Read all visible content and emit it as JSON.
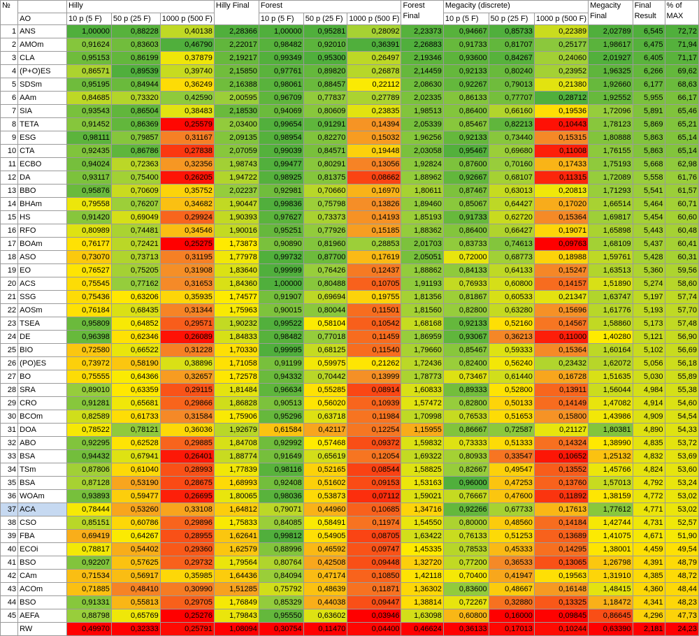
{
  "header": {
    "no": "№",
    "ao": "AO",
    "groups": [
      "Hilly",
      "Forest",
      "Megacity (discrete)"
    ],
    "sub": [
      "10 p (5 F)",
      "50 p (25 F)",
      "1000 p (500 F)"
    ],
    "final_labels": [
      "Hilly Final",
      "Forest Final",
      "Megacity Final"
    ],
    "final_result": "Final Result",
    "pct_max": "% of MAX"
  },
  "rows": [
    {
      "n": "1",
      "name": "ANS",
      "v": [
        "1,00000",
        "0,88228",
        "0,40138",
        "2,28366",
        "1,00000",
        "0,95281",
        "0,28092",
        "2,23373",
        "0,94667",
        "0,85733",
        "0,22389",
        "2,02789",
        "6,545",
        "72,72"
      ]
    },
    {
      "n": "2",
      "name": "AMOm",
      "v": [
        "0,91624",
        "0,83603",
        "0,46790",
        "2,22017",
        "0,98482",
        "0,92010",
        "0,36391",
        "2,26883",
        "0,91733",
        "0,81707",
        "0,25177",
        "1,98617",
        "6,475",
        "71,94"
      ]
    },
    {
      "n": "3",
      "name": "CLA",
      "v": [
        "0,95153",
        "0,86199",
        "0,37879",
        "2,19217",
        "0,99349",
        "0,95300",
        "0,26497",
        "2,19346",
        "0,93600",
        "0,84267",
        "0,24060",
        "2,01927",
        "6,405",
        "71,17"
      ]
    },
    {
      "n": "4",
      "name": "(P+O)ES",
      "v": [
        "0,86571",
        "0,89539",
        "0,39740",
        "2,15850",
        "0,97761",
        "0,89820",
        "0,26878",
        "2,14459",
        "0,92133",
        "0,80240",
        "0,23952",
        "1,96325",
        "6,266",
        "69,62"
      ]
    },
    {
      "n": "5",
      "name": "SDSm",
      "v": [
        "0,95195",
        "0,84944",
        "0,36249",
        "2,16388",
        "0,98061",
        "0,88457",
        "0,22112",
        "2,08630",
        "0,92267",
        "0,79013",
        "0,21380",
        "1,92660",
        "6,177",
        "68,63"
      ]
    },
    {
      "n": "6",
      "name": "AAm",
      "v": [
        "0,84685",
        "0,73320",
        "0,42590",
        "2,00595",
        "0,96709",
        "0,77837",
        "0,27789",
        "2,02335",
        "0,86133",
        "0,77707",
        "0,28712",
        "1,92552",
        "5,955",
        "66,17"
      ]
    },
    {
      "n": "7",
      "name": "SIA",
      "v": [
        "0,93543",
        "0,86504",
        "0,38483",
        "2,18530",
        "0,94069",
        "0,80609",
        "0,23835",
        "1,98513",
        "0,86400",
        "0,66160",
        "0,19536",
        "1,72096",
        "5,891",
        "65,46"
      ]
    },
    {
      "n": "8",
      "name": "TETA",
      "v": [
        "0,91452",
        "0,86369",
        "0,25579",
        "2,03400",
        "0,99654",
        "0,91291",
        "0,14394",
        "2,05339",
        "0,85467",
        "0,82213",
        "0,10443",
        "1,78123",
        "5,869",
        "65,21"
      ]
    },
    {
      "n": "9",
      "name": "ESG",
      "v": [
        "0,98111",
        "0,79857",
        "0,31167",
        "2,09135",
        "0,98954",
        "0,82270",
        "0,15032",
        "1,96256",
        "0,92133",
        "0,73440",
        "0,15315",
        "1,80888",
        "5,863",
        "65,14"
      ]
    },
    {
      "n": "10",
      "name": "CTA",
      "v": [
        "0,92435",
        "0,86786",
        "0,27838",
        "2,07059",
        "0,99039",
        "0,84571",
        "0,19448",
        "2,03058",
        "0,95467",
        "0,69680",
        "0,11008",
        "1,76155",
        "5,863",
        "65,14"
      ]
    },
    {
      "n": "11",
      "name": "ECBO",
      "v": [
        "0,94024",
        "0,72363",
        "0,32356",
        "1,98743",
        "0,99477",
        "0,80291",
        "0,13056",
        "1,92824",
        "0,87600",
        "0,70160",
        "0,17433",
        "1,75193",
        "5,668",
        "62,98"
      ]
    },
    {
      "n": "12",
      "name": "DA",
      "v": [
        "0,93117",
        "0,75400",
        "0,26205",
        "1,94722",
        "0,98925",
        "0,81375",
        "0,08662",
        "1,88962",
        "0,92667",
        "0,68107",
        "0,11315",
        "1,72089",
        "5,558",
        "61,76"
      ]
    },
    {
      "n": "13",
      "name": "BBO",
      "v": [
        "0,95876",
        "0,70609",
        "0,35752",
        "2,02237",
        "0,92981",
        "0,70660",
        "0,16970",
        "1,80611",
        "0,87467",
        "0,63013",
        "0,20813",
        "1,71293",
        "5,541",
        "61,57"
      ]
    },
    {
      "n": "14",
      "name": "BHAm",
      "v": [
        "0,79558",
        "0,76207",
        "0,34682",
        "1,90447",
        "0,99836",
        "0,75798",
        "0,13826",
        "1,89460",
        "0,85067",
        "0,64427",
        "0,17020",
        "1,66514",
        "5,464",
        "60,71"
      ]
    },
    {
      "n": "15",
      "name": "HS",
      "v": [
        "0,91420",
        "0,69049",
        "0,29924",
        "1,90393",
        "0,97627",
        "0,73373",
        "0,14193",
        "1,85193",
        "0,91733",
        "0,62720",
        "0,15364",
        "1,69817",
        "5,454",
        "60,60"
      ]
    },
    {
      "n": "16",
      "name": "RFO",
      "v": [
        "0,80989",
        "0,74481",
        "0,34546",
        "1,90016",
        "0,95251",
        "0,77926",
        "0,15185",
        "1,88362",
        "0,86400",
        "0,66427",
        "0,19071",
        "1,65898",
        "5,443",
        "60,48"
      ]
    },
    {
      "n": "17",
      "name": "BOAm",
      "v": [
        "0,76177",
        "0,72421",
        "0,25275",
        "1,73873",
        "0,90890",
        "0,81960",
        "0,28853",
        "2,01703",
        "0,83733",
        "0,74613",
        "0,09763",
        "1,68109",
        "5,437",
        "60,41"
      ]
    },
    {
      "n": "18",
      "name": "ASO",
      "v": [
        "0,73070",
        "0,73713",
        "0,31195",
        "1,77978",
        "0,99732",
        "0,87700",
        "0,17619",
        "2,05051",
        "0,72000",
        "0,68773",
        "0,18988",
        "1,59761",
        "5,428",
        "60,31"
      ]
    },
    {
      "n": "19",
      "name": "EO",
      "v": [
        "0,76527",
        "0,75205",
        "0,31908",
        "1,83640",
        "0,99999",
        "0,76426",
        "0,12437",
        "1,88862",
        "0,84133",
        "0,64133",
        "0,15247",
        "1,63513",
        "5,360",
        "59,56"
      ]
    },
    {
      "n": "20",
      "name": "ACS",
      "v": [
        "0,75545",
        "0,77162",
        "0,31653",
        "1,84360",
        "1,00000",
        "0,80488",
        "0,10705",
        "1,91193",
        "0,76933",
        "0,60800",
        "0,14157",
        "1,51890",
        "5,274",
        "58,60"
      ]
    },
    {
      "n": "21",
      "name": "SSG",
      "v": [
        "0,75436",
        "0,63206",
        "0,35935",
        "1,74577",
        "0,91907",
        "0,69694",
        "0,19755",
        "1,81356",
        "0,81867",
        "0,60533",
        "0,21347",
        "1,63747",
        "5,197",
        "57,74"
      ]
    },
    {
      "n": "22",
      "name": "AOSm",
      "v": [
        "0,76184",
        "0,68435",
        "0,31344",
        "1,75963",
        "0,90015",
        "0,80044",
        "0,11501",
        "1,81560",
        "0,82800",
        "0,63280",
        "0,15696",
        "1,61776",
        "5,193",
        "57,70"
      ]
    },
    {
      "n": "23",
      "name": "TSEA",
      "v": [
        "0,95809",
        "0,64852",
        "0,29571",
        "1,90232",
        "0,99522",
        "0,58104",
        "0,10542",
        "1,68168",
        "0,92133",
        "0,52160",
        "0,14567",
        "1,58860",
        "5,173",
        "57,48"
      ]
    },
    {
      "n": "24",
      "name": "DE",
      "v": [
        "0,96398",
        "0,62346",
        "0,26089",
        "1,84833",
        "0,98482",
        "0,77018",
        "0,11459",
        "1,86959",
        "0,93067",
        "0,36213",
        "0,11000",
        "1,40280",
        "5,121",
        "56,90"
      ]
    },
    {
      "n": "25",
      "name": "BIO",
      "v": [
        "0,72580",
        "0,66522",
        "0,31228",
        "1,70330",
        "0,99995",
        "0,68125",
        "0,11540",
        "1,79660",
        "0,85467",
        "0,59333",
        "0,15364",
        "1,60164",
        "5,102",
        "56,69"
      ]
    },
    {
      "n": "26",
      "name": "(PO)ES",
      "v": [
        "0,73972",
        "0,58190",
        "0,38896",
        "1,71058",
        "0,91199",
        "0,59975",
        "0,21262",
        "1,72436",
        "0,82400",
        "0,56240",
        "0,23432",
        "1,62072",
        "5,056",
        "56,18"
      ]
    },
    {
      "n": "27",
      "name": "BO",
      "v": [
        "0,75555",
        "0,64366",
        "0,32657",
        "1,72578",
        "0,94332",
        "0,70442",
        "0,13999",
        "1,78773",
        "0,73467",
        "0,61440",
        "0,16728",
        "1,51635",
        "5,030",
        "55,89"
      ]
    },
    {
      "n": "28",
      "name": "SRA",
      "v": [
        "0,89010",
        "0,63359",
        "0,29115",
        "1,81484",
        "0,96634",
        "0,55285",
        "0,08914",
        "1,60833",
        "0,89333",
        "0,52800",
        "0,13911",
        "1,56044",
        "4,984",
        "55,38"
      ]
    },
    {
      "n": "29",
      "name": "CRO",
      "v": [
        "0,91281",
        "0,65681",
        "0,29866",
        "1,86828",
        "0,90513",
        "0,56020",
        "0,10939",
        "1,57472",
        "0,82800",
        "0,50133",
        "0,14149",
        "1,47082",
        "4,914",
        "54,60"
      ]
    },
    {
      "n": "30",
      "name": "BCOm",
      "v": [
        "0,82589",
        "0,61733",
        "0,31584",
        "1,75906",
        "0,95296",
        "0,63718",
        "0,11984",
        "1,70998",
        "0,76533",
        "0,51653",
        "0,15800",
        "1,43986",
        "4,909",
        "54,54"
      ]
    },
    {
      "n": "31",
      "name": "DOA",
      "v": [
        "0,78522",
        "0,78121",
        "0,36036",
        "1,92679",
        "0,61584",
        "0,42117",
        "0,12254",
        "1,15955",
        "0,86667",
        "0,72587",
        "0,21127",
        "1,80381",
        "4,890",
        "54,33"
      ]
    },
    {
      "n": "32",
      "name": "ABO",
      "v": [
        "0,92295",
        "0,62528",
        "0,29885",
        "1,84708",
        "0,92992",
        "0,57468",
        "0,09372",
        "1,59832",
        "0,73333",
        "0,51333",
        "0,14324",
        "1,38990",
        "4,835",
        "53,72"
      ]
    },
    {
      "n": "33",
      "name": "BSA",
      "v": [
        "0,94432",
        "0,67941",
        "0,26401",
        "1,88774",
        "0,91649",
        "0,65619",
        "0,12054",
        "1,69322",
        "0,80933",
        "0,33547",
        "0,10652",
        "1,25132",
        "4,832",
        "53,69"
      ]
    },
    {
      "n": "34",
      "name": "TSm",
      "v": [
        "0,87806",
        "0,61040",
        "0,28993",
        "1,77839",
        "0,98116",
        "0,52165",
        "0,08544",
        "1,58825",
        "0,82667",
        "0,49547",
        "0,13552",
        "1,45766",
        "4,824",
        "53,60"
      ]
    },
    {
      "n": "35",
      "name": "BSA",
      "v": [
        "0,87128",
        "0,53190",
        "0,28675",
        "1,68993",
        "0,92408",
        "0,51602",
        "0,09153",
        "1,53163",
        "0,96000",
        "0,47253",
        "0,13760",
        "1,57013",
        "4,792",
        "53,24"
      ]
    },
    {
      "n": "36",
      "name": "WOAm",
      "v": [
        "0,93893",
        "0,59477",
        "0,26695",
        "1,80065",
        "0,98036",
        "0,53873",
        "0,07112",
        "1,59021",
        "0,76667",
        "0,47600",
        "0,11892",
        "1,38159",
        "4,772",
        "53,02"
      ]
    },
    {
      "n": "37",
      "name": "ACA",
      "v": [
        "0,78444",
        "0,53260",
        "0,33108",
        "1,64812",
        "0,79071",
        "0,44960",
        "0,10685",
        "1,34716",
        "0,92266",
        "0,67733",
        "0,17613",
        "1,77612",
        "4,771",
        "53,02"
      ]
    },
    {
      "n": "38",
      "name": "CSO",
      "v": [
        "0,85151",
        "0,60786",
        "0,29896",
        "1,75833",
        "0,84085",
        "0,58491",
        "0,11974",
        "1,54550",
        "0,80000",
        "0,48560",
        "0,14184",
        "1,42744",
        "4,731",
        "52,57"
      ]
    },
    {
      "n": "39",
      "name": "FBA",
      "v": [
        "0,69419",
        "0,64267",
        "0,28955",
        "1,62641",
        "0,99812",
        "0,54905",
        "0,08705",
        "1,63422",
        "0,76133",
        "0,51253",
        "0,13689",
        "1,41075",
        "4,671",
        "51,90"
      ]
    },
    {
      "n": "40",
      "name": "ECOi",
      "v": [
        "0,78817",
        "0,54402",
        "0,29360",
        "1,62579",
        "0,88996",
        "0,46592",
        "0,09747",
        "1,45335",
        "0,78533",
        "0,45333",
        "0,14295",
        "1,38001",
        "4,459",
        "49,54"
      ]
    },
    {
      "n": "41",
      "name": "BSO",
      "v": [
        "0,92207",
        "0,57625",
        "0,29732",
        "1,79564",
        "0,80764",
        "0,42508",
        "0,09448",
        "1,32720",
        "0,77200",
        "0,36533",
        "0,13065",
        "1,26798",
        "4,391",
        "48,79"
      ]
    },
    {
      "n": "42",
      "name": "CAm",
      "v": [
        "0,71534",
        "0,56917",
        "0,35985",
        "1,64436",
        "0,84094",
        "0,47174",
        "0,10850",
        "1,42118",
        "0,70400",
        "0,41947",
        "0,19563",
        "1,31910",
        "4,385",
        "48,72"
      ]
    },
    {
      "n": "43",
      "name": "ACOm",
      "v": [
        "0,71885",
        "0,48410",
        "0,30990",
        "1,51285",
        "0,75792",
        "0,48639",
        "0,11871",
        "1,36302",
        "0,83600",
        "0,48667",
        "0,16148",
        "1,48415",
        "4,360",
        "48,44"
      ]
    },
    {
      "n": "44",
      "name": "BSO",
      "v": [
        "0,91331",
        "0,55813",
        "0,29705",
        "1,76849",
        "0,85329",
        "0,44038",
        "0,09447",
        "1,38814",
        "0,72267",
        "0,32880",
        "0,13325",
        "1,18472",
        "4,341",
        "48,23"
      ]
    },
    {
      "n": "45",
      "name": "AEFA",
      "v": [
        "0,88798",
        "0,65769",
        "0,25276",
        "1,79843",
        "0,95550",
        "0,63602",
        "0,03946",
        "1,63098",
        "0,60800",
        "0,16000",
        "0,09845",
        "0,86645",
        "4,296",
        "47,73"
      ]
    },
    {
      "n": "",
      "name": "RW",
      "v": [
        "0,49970",
        "0,32333",
        "0,25791",
        "1,08094",
        "0,30754",
        "0,11470",
        "0,04400",
        "0,46624",
        "0,36133",
        "0,17013",
        "0,10244",
        "0,63390",
        "2,181",
        "24,23"
      ]
    }
  ],
  "selected_row": "37"
}
